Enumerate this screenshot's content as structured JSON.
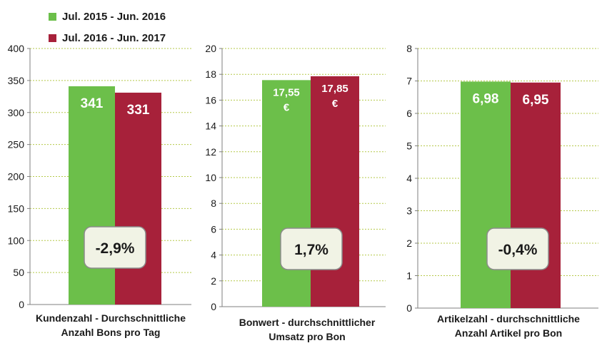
{
  "legend": [
    {
      "label": "Jul. 2015 - Jun. 2016",
      "color": "#6cbf4a"
    },
    {
      "label": "Jul. 2016 - Jun. 2017",
      "color": "#a7213a"
    }
  ],
  "chart_data": [
    {
      "type": "bar",
      "categories": [
        "Jul. 2015 - Jun. 2016",
        "Jul. 2016 - Jun. 2017"
      ],
      "values": [
        341,
        331
      ],
      "value_labels": [
        [
          "341"
        ],
        [
          "331"
        ]
      ],
      "ylim": [
        0,
        400
      ],
      "yticks": [
        "0",
        "50",
        "100",
        "150",
        "200",
        "250",
        "300",
        "350",
        "400"
      ],
      "xlabel_lines": [
        "Kundenzahl - Durchschnittliche",
        "Anzahl Bons pro Tag"
      ],
      "change": "-2,9%",
      "grid": true
    },
    {
      "type": "bar",
      "categories": [
        "Jul. 2015 - Jun. 2016",
        "Jul. 2016 - Jun. 2017"
      ],
      "values": [
        17.55,
        17.85
      ],
      "value_labels": [
        [
          "17,55",
          "€"
        ],
        [
          "17,85",
          "€"
        ]
      ],
      "ylim": [
        0,
        20
      ],
      "yticks": [
        "0",
        "2",
        "4",
        "6",
        "8",
        "10",
        "12",
        "14",
        "16",
        "18",
        "20"
      ],
      "xlabel_lines": [
        "Bonwert - durchschnittlicher",
        "Umsatz pro Bon"
      ],
      "change": "1,7%",
      "grid": true
    },
    {
      "type": "bar",
      "categories": [
        "Jul. 2015 - Jun. 2016",
        "Jul. 2016 - Jun. 2017"
      ],
      "values": [
        6.98,
        6.95
      ],
      "value_labels": [
        [
          "6,98"
        ],
        [
          "6,95"
        ]
      ],
      "ylim": [
        0,
        8
      ],
      "yticks": [
        "0",
        "1",
        "2",
        "3",
        "4",
        "5",
        "6",
        "7",
        "8"
      ],
      "xlabel_lines": [
        "Artikelzahl - durchschnittliche",
        "Anzahl Artikel pro Bon"
      ],
      "change": "-0,4%",
      "grid": true
    }
  ]
}
